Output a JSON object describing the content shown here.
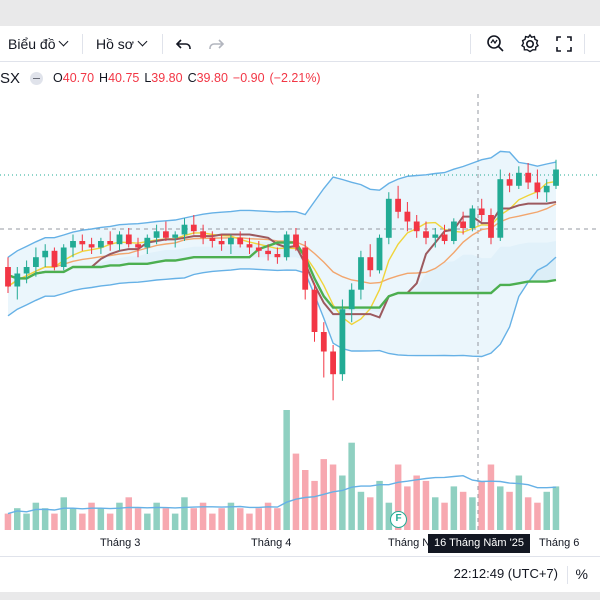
{
  "toolbar": {
    "chart_type_label": "Biểu đồ",
    "profile_label": "Hồ sơ"
  },
  "legend": {
    "symbol": "SX",
    "open_key": "O",
    "open": "40.70",
    "high_key": "H",
    "high": "40.75",
    "low_key": "L",
    "low": "39.80",
    "close_key": "C",
    "close": "39.80",
    "change": "−0.90",
    "change_pct": "(−2.21%)"
  },
  "xaxis": {
    "labels": [
      "Tháng 3",
      "Tháng 4",
      "Tháng Năm",
      "Tháng 6"
    ],
    "crosshair_date": "16 Tháng Năm '25"
  },
  "event_marker": "F",
  "statusbar": {
    "time": "22:12:49 (UTC+7)",
    "percent": "%"
  },
  "colors": {
    "up": "#22ab94",
    "down": "#f23645",
    "up_volume": "#8fd0c1",
    "down_volume": "#f7a8b0",
    "bollinger": "#66b1e6",
    "ma_fast": "#f0d43a",
    "ma_slow": "#f2a66e",
    "kijun": "#4caf50",
    "tenkan": "#9c5a5f",
    "cloud": "#bfe0f1"
  },
  "icons": {
    "chart_type": "chevron-down-icon",
    "undo": "undo-icon",
    "redo": "redo-icon",
    "alert": "alert-icon",
    "settings": "gear-icon",
    "fullscreen": "fullscreen-icon"
  },
  "chart_data": {
    "type": "candlestick",
    "x_labels": [
      "Tháng 3",
      "Tháng 4",
      "Tháng Năm",
      "Tháng 6"
    ],
    "price_range": [
      36.5,
      44.5
    ],
    "ohlc": [
      [
        40.9,
        41.2,
        40.1,
        40.3
      ],
      [
        40.3,
        40.9,
        39.9,
        40.7
      ],
      [
        40.7,
        41.1,
        40.4,
        40.9
      ],
      [
        40.9,
        41.5,
        40.6,
        41.2
      ],
      [
        41.2,
        41.6,
        40.9,
        41.4
      ],
      [
        41.4,
        41.5,
        40.8,
        40.9
      ],
      [
        40.9,
        41.6,
        40.8,
        41.5
      ],
      [
        41.5,
        41.9,
        41.2,
        41.7
      ],
      [
        41.7,
        41.9,
        41.4,
        41.6
      ],
      [
        41.6,
        41.8,
        41.3,
        41.5
      ],
      [
        41.5,
        41.8,
        41.3,
        41.7
      ],
      [
        41.7,
        42.0,
        41.4,
        41.6
      ],
      [
        41.6,
        42.0,
        41.4,
        41.9
      ],
      [
        41.9,
        42.1,
        41.5,
        41.6
      ],
      [
        41.6,
        41.8,
        41.2,
        41.5
      ],
      [
        41.5,
        41.9,
        41.3,
        41.8
      ],
      [
        41.8,
        42.2,
        41.6,
        42.0
      ],
      [
        42.0,
        42.3,
        41.7,
        41.8
      ],
      [
        41.8,
        42.0,
        41.5,
        41.9
      ],
      [
        41.9,
        42.4,
        41.7,
        42.2
      ],
      [
        42.2,
        42.5,
        41.9,
        42.0
      ],
      [
        42.0,
        42.2,
        41.6,
        41.8
      ],
      [
        41.8,
        42.0,
        41.5,
        41.7
      ],
      [
        41.7,
        41.9,
        41.4,
        41.6
      ],
      [
        41.6,
        41.9,
        41.3,
        41.8
      ],
      [
        41.8,
        42.0,
        41.5,
        41.6
      ],
      [
        41.6,
        41.8,
        41.3,
        41.5
      ],
      [
        41.5,
        41.7,
        41.2,
        41.4
      ],
      [
        41.4,
        41.6,
        41.1,
        41.3
      ],
      [
        41.3,
        41.5,
        41.0,
        41.2
      ],
      [
        41.2,
        42.0,
        41.1,
        41.9
      ],
      [
        41.9,
        42.1,
        41.4,
        41.5
      ],
      [
        41.5,
        41.7,
        39.9,
        40.2
      ],
      [
        40.2,
        40.4,
        38.6,
        38.9
      ],
      [
        38.9,
        39.2,
        37.5,
        38.3
      ],
      [
        38.3,
        38.5,
        36.8,
        37.6
      ],
      [
        37.6,
        39.9,
        37.4,
        39.6
      ],
      [
        39.6,
        40.4,
        39.2,
        40.2
      ],
      [
        40.2,
        41.4,
        39.9,
        41.2
      ],
      [
        41.2,
        41.6,
        40.6,
        40.8
      ],
      [
        40.8,
        41.9,
        40.7,
        41.8
      ],
      [
        41.8,
        43.2,
        41.6,
        43.0
      ],
      [
        43.0,
        43.4,
        42.4,
        42.6
      ],
      [
        42.6,
        42.9,
        42.0,
        42.3
      ],
      [
        42.3,
        42.5,
        41.8,
        42.0
      ],
      [
        42.0,
        42.3,
        41.6,
        41.8
      ],
      [
        41.8,
        42.1,
        41.5,
        41.9
      ],
      [
        41.9,
        42.2,
        41.6,
        41.7
      ],
      [
        41.7,
        42.4,
        41.6,
        42.3
      ],
      [
        42.3,
        42.6,
        41.9,
        42.1
      ],
      [
        42.1,
        42.8,
        42.0,
        42.7
      ],
      [
        42.7,
        43.0,
        42.3,
        42.5
      ],
      [
        42.5,
        42.7,
        41.6,
        41.8
      ],
      [
        41.8,
        43.9,
        41.7,
        43.6
      ],
      [
        43.6,
        43.8,
        43.2,
        43.4
      ],
      [
        43.4,
        44.0,
        43.3,
        43.8
      ],
      [
        43.8,
        44.1,
        43.3,
        43.5
      ],
      [
        43.5,
        43.9,
        43.0,
        43.2
      ],
      [
        43.2,
        43.6,
        42.9,
        43.4
      ],
      [
        43.4,
        44.2,
        43.3,
        43.9
      ]
    ],
    "volume": [
      3,
      4,
      3,
      5,
      4,
      3,
      6,
      4,
      3,
      5,
      4,
      3,
      5,
      6,
      4,
      3,
      5,
      4,
      3,
      6,
      4,
      5,
      3,
      4,
      5,
      4,
      3,
      4,
      5,
      4,
      22,
      14,
      11,
      9,
      13,
      12,
      10,
      16,
      7,
      6,
      9,
      5,
      12,
      8,
      10,
      9,
      6,
      5,
      8,
      7,
      6,
      9,
      12,
      8,
      7,
      10,
      6,
      5,
      7,
      8
    ]
  }
}
